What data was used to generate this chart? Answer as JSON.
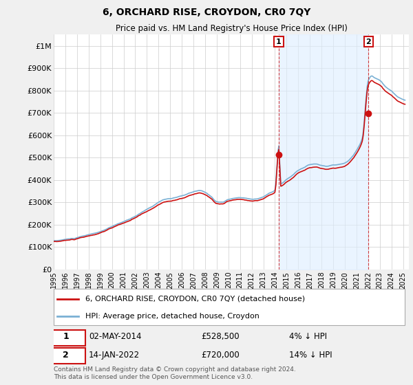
{
  "title": "6, ORCHARD RISE, CROYDON, CR0 7QY",
  "subtitle": "Price paid vs. HM Land Registry's House Price Index (HPI)",
  "ylabel_ticks": [
    "£0",
    "£100K",
    "£200K",
    "£300K",
    "£400K",
    "£500K",
    "£600K",
    "£700K",
    "£800K",
    "£900K",
    "£1M"
  ],
  "ytick_values": [
    0,
    100000,
    200000,
    300000,
    400000,
    500000,
    600000,
    700000,
    800000,
    900000,
    1000000
  ],
  "ylim": [
    0,
    1050000
  ],
  "xlim_start": 1995.0,
  "xlim_end": 2025.5,
  "hpi_color": "#7ab0d4",
  "price_color": "#cc1111",
  "shade_color": "#ddeeff",
  "background_color": "#f0f0f0",
  "plot_bg_color": "#ffffff",
  "legend_label_price": "6, ORCHARD RISE, CROYDON, CR0 7QY (detached house)",
  "legend_label_hpi": "HPI: Average price, detached house, Croydon",
  "purchase1_date": "02-MAY-2014",
  "purchase1_price": "£528,500",
  "purchase1_pct": "4% ↓ HPI",
  "purchase1_year": 2014.33,
  "purchase1_value": 528500,
  "purchase2_date": "14-JAN-2022",
  "purchase2_price": "£720,000",
  "purchase2_pct": "14% ↓ HPI",
  "purchase2_year": 2022.04,
  "purchase2_value": 720000,
  "footnote": "Contains HM Land Registry data © Crown copyright and database right 2024.\nThis data is licensed under the Open Government Licence v3.0."
}
